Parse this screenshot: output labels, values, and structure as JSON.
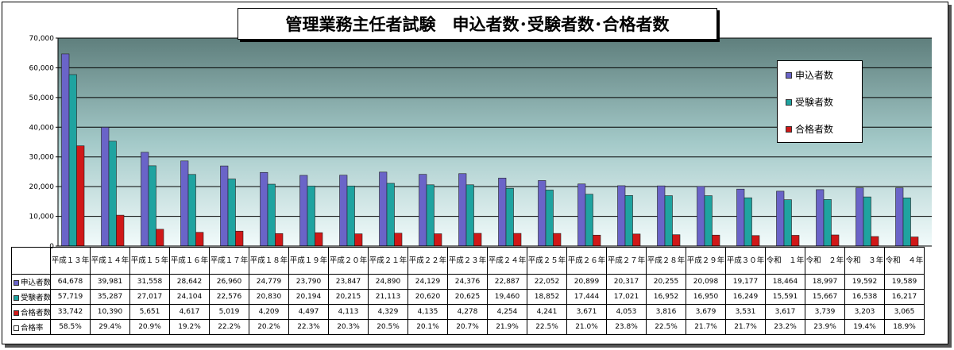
{
  "title": "管理業務主任者試験　申込者数･受験者数･合格者数",
  "colors": {
    "apply": "#6a64c8",
    "exam": "#1fa3a0",
    "pass": "#d01818",
    "rate": "#ffffff"
  },
  "legend": {
    "apply": "申込者数",
    "exam": "受験者数",
    "pass": "合格者数"
  },
  "row_labels": {
    "apply": "申込者数",
    "exam": "受験者数",
    "pass": "合格者数",
    "rate": "合格率"
  },
  "chart_data": {
    "type": "bar",
    "categories": [
      "平成１３年",
      "平成１４年",
      "平成１５年",
      "平成１６年",
      "平成１７年",
      "平成１８年",
      "平成１９年",
      "平成２０年",
      "平成２１年",
      "平成２２年",
      "平成２３年",
      "平成２４年",
      "平成２５年",
      "平成２６年",
      "平成２７年",
      "平成２８年",
      "平成２９年",
      "平成３０年",
      "令和　１年",
      "令和　２年",
      "令和　３年",
      "令和　４年"
    ],
    "series": [
      {
        "name": "申込者数",
        "values": [
          64678,
          39981,
          31558,
          28642,
          26960,
          24779,
          23790,
          23847,
          24890,
          24129,
          24376,
          22887,
          22052,
          20899,
          20317,
          20255,
          20098,
          19177,
          18464,
          18997,
          19592,
          19589
        ]
      },
      {
        "name": "受験者数",
        "values": [
          57719,
          35287,
          27017,
          24104,
          22576,
          20830,
          20194,
          20215,
          21113,
          20620,
          20625,
          19460,
          18852,
          17444,
          17021,
          16952,
          16950,
          16249,
          15591,
          15667,
          16538,
          16217
        ]
      },
      {
        "name": "合格者数",
        "values": [
          33742,
          10390,
          5651,
          4617,
          5019,
          4209,
          4497,
          4113,
          4329,
          4135,
          4278,
          4254,
          4241,
          3671,
          4053,
          3816,
          3679,
          3531,
          3617,
          3739,
          3203,
          3065
        ]
      }
    ],
    "rate_labels": [
      "58.5%",
      "29.4%",
      "20.9%",
      "19.2%",
      "22.2%",
      "20.2%",
      "22.3%",
      "20.3%",
      "20.5%",
      "20.1%",
      "20.7%",
      "21.9%",
      "22.5%",
      "21.0%",
      "23.8%",
      "22.5%",
      "21.7%",
      "21.7%",
      "23.2%",
      "23.9%",
      "19.4%",
      "18.9%"
    ],
    "ylim": [
      0,
      70000
    ],
    "yticks": [
      "0",
      "10,000",
      "20,000",
      "30,000",
      "40,000",
      "50,000",
      "60,000",
      "70,000"
    ],
    "grid": true,
    "legend_position": "top-right"
  }
}
